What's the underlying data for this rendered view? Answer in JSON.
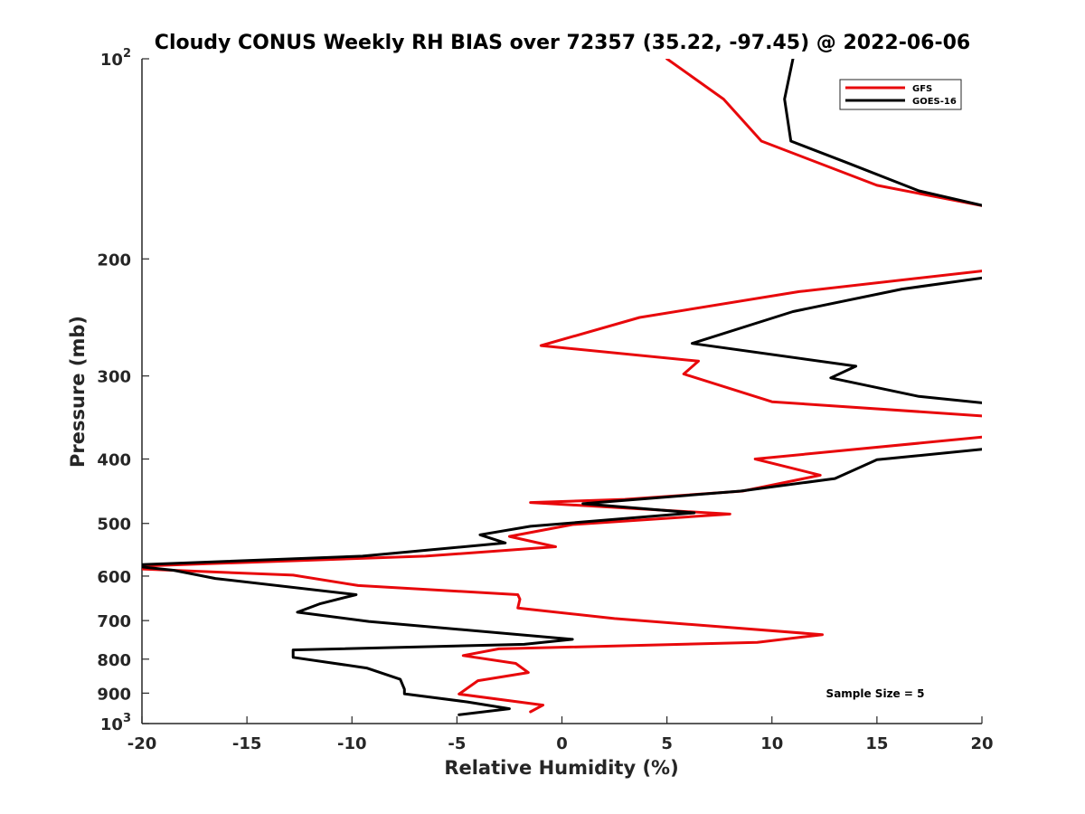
{
  "chart_data": {
    "type": "line",
    "title": "Cloudy CONUS Weekly RH BIAS over 72357 (35.22, -97.45) @ 2022-06-06",
    "xlabel": "Relative Humidity (%)",
    "ylabel": "Pressure (mb)",
    "xlim": [
      -20,
      20
    ],
    "ylim": [
      100,
      1000
    ],
    "y_scale": "log",
    "y_reversed": true,
    "grid": false,
    "legend_position": "top-right",
    "x_ticks": [
      "-20",
      "-15",
      "-10",
      "-5",
      "0",
      "5",
      "10",
      "15",
      "20"
    ],
    "y_ticks": [
      {
        "value": 100,
        "label": "10",
        "exp": "2"
      },
      {
        "value": 200,
        "label": "200",
        "exp": ""
      },
      {
        "value": 300,
        "label": "300",
        "exp": ""
      },
      {
        "value": 400,
        "label": "400",
        "exp": ""
      },
      {
        "value": 500,
        "label": "500",
        "exp": ""
      },
      {
        "value": 600,
        "label": "600",
        "exp": ""
      },
      {
        "value": 700,
        "label": "700",
        "exp": ""
      },
      {
        "value": 800,
        "label": "800",
        "exp": ""
      },
      {
        "value": 900,
        "label": "900",
        "exp": ""
      },
      {
        "value": 1000,
        "label": "10",
        "exp": "3"
      }
    ],
    "annotation": "Sample Size = 5",
    "series": [
      {
        "name": "GFS",
        "color": "#e8080b",
        "points": [
          [
            5.0,
            100
          ],
          [
            7.7,
            115
          ],
          [
            9.5,
            133
          ],
          [
            15.0,
            155
          ],
          [
            20.3,
            167
          ],
          [
            20.3,
            208
          ],
          [
            11.3,
            224
          ],
          [
            3.7,
            245
          ],
          [
            -1.0,
            270
          ],
          [
            6.5,
            285
          ],
          [
            5.8,
            298
          ],
          [
            10.0,
            328
          ],
          [
            20.3,
            345
          ],
          [
            20.3,
            370
          ],
          [
            9.2,
            400
          ],
          [
            12.3,
            423
          ],
          [
            8.6,
            447
          ],
          [
            3.0,
            460
          ],
          [
            -1.5,
            465
          ],
          [
            8.0,
            484
          ],
          [
            0.5,
            502
          ],
          [
            -2.5,
            523
          ],
          [
            -0.3,
            542
          ],
          [
            -6.5,
            560
          ],
          [
            -20.3,
            580
          ],
          [
            -20.3,
            585
          ],
          [
            -12.8,
            598
          ],
          [
            -9.7,
            620
          ],
          [
            -2.1,
            640
          ],
          [
            -2.0,
            650
          ],
          [
            -2.1,
            670
          ],
          [
            2.5,
            695
          ],
          [
            12.4,
            735
          ],
          [
            9.3,
            755
          ],
          [
            -3.0,
            772
          ],
          [
            -4.7,
            790
          ],
          [
            -2.2,
            812
          ],
          [
            -1.6,
            838
          ],
          [
            -4.0,
            862
          ],
          [
            -4.9,
            903
          ],
          [
            -0.9,
            938
          ],
          [
            -1.5,
            960
          ]
        ]
      },
      {
        "name": "GOES-16",
        "color": "#000000",
        "points": [
          [
            11.0,
            100
          ],
          [
            10.6,
            115
          ],
          [
            10.9,
            133
          ],
          [
            13.5,
            143
          ],
          [
            17.0,
            158
          ],
          [
            20.3,
            167
          ],
          [
            20.3,
            213
          ],
          [
            16.2,
            222
          ],
          [
            11.0,
            240
          ],
          [
            6.2,
            268
          ],
          [
            14.0,
            290
          ],
          [
            12.8,
            302
          ],
          [
            17.0,
            322
          ],
          [
            20.3,
            330
          ],
          [
            20.3,
            386
          ],
          [
            15.0,
            401
          ],
          [
            13.0,
            428
          ],
          [
            8.5,
            447
          ],
          [
            1.0,
            467
          ],
          [
            6.3,
            482
          ],
          [
            -1.5,
            505
          ],
          [
            -3.9,
            520
          ],
          [
            -2.7,
            535
          ],
          [
            -9.5,
            560
          ],
          [
            -20.3,
            577
          ],
          [
            -20.3,
            580
          ],
          [
            -18.5,
            588
          ],
          [
            -16.5,
            605
          ],
          [
            -9.8,
            640
          ],
          [
            -11.5,
            660
          ],
          [
            -12.6,
            680
          ],
          [
            -9.2,
            702
          ],
          [
            0.5,
            747
          ],
          [
            -1.8,
            760
          ],
          [
            -12.8,
            775
          ],
          [
            -12.8,
            795
          ],
          [
            -9.3,
            825
          ],
          [
            -7.7,
            858
          ],
          [
            -7.5,
            888
          ],
          [
            -7.5,
            902
          ],
          [
            -4.5,
            928
          ],
          [
            -2.5,
            950
          ],
          [
            -4.9,
            970
          ]
        ]
      }
    ]
  }
}
